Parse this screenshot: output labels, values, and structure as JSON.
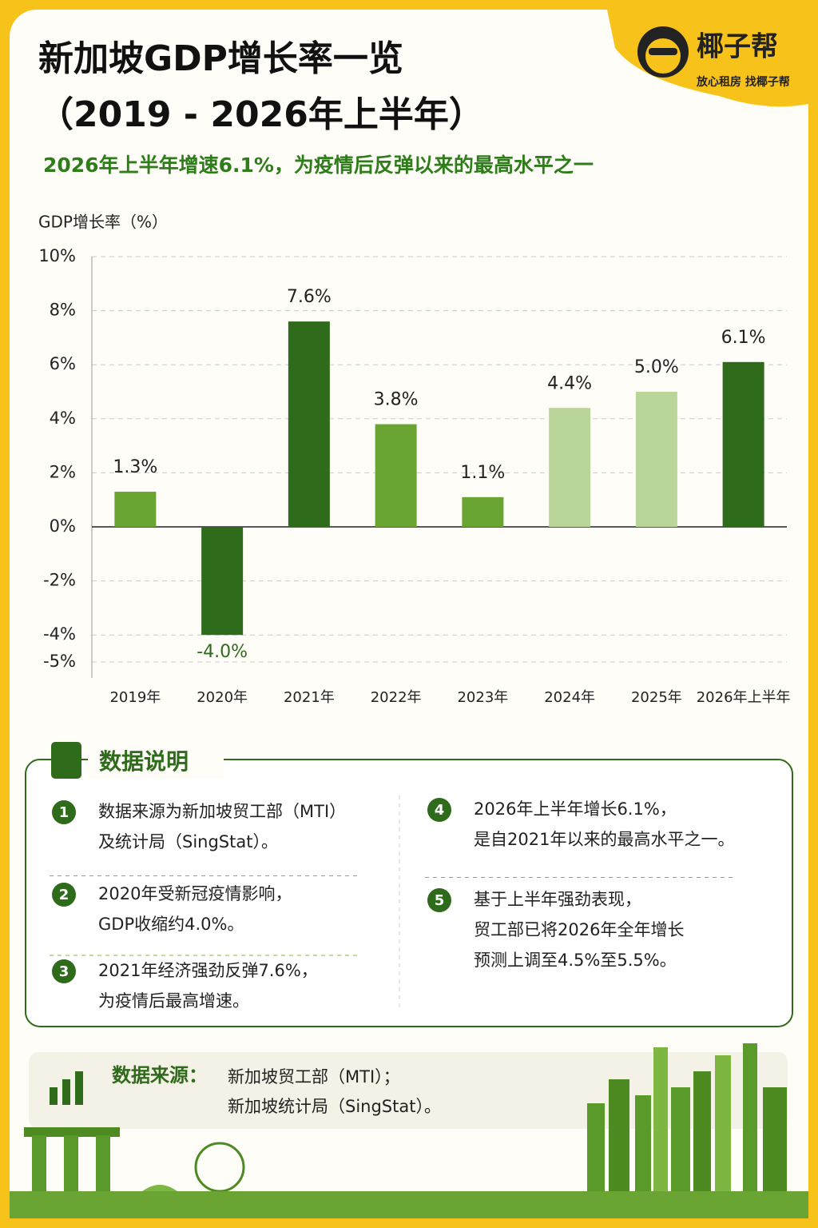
{
  "header": {
    "title_lines": [
      "新加坡GDP增长率一览",
      "（2019 - 2026年上半年）"
    ],
    "subtitle": "2026年上半年增速6.1%，为疫情后反弹以来的最高水平之一"
  },
  "brand": {
    "name": "椰子帮",
    "tagline": "放心租房  找椰子帮"
  },
  "chart_data": {
    "type": "bar",
    "y_label": "GDP增长率（%）",
    "categories": [
      "2019年",
      "2020年",
      "2021年",
      "2022年",
      "2023年",
      "2024年",
      "2025年",
      "2026年上半年"
    ],
    "values": [
      1.3,
      -4.0,
      7.6,
      3.8,
      1.1,
      4.4,
      5.0,
      6.1
    ],
    "value_labels": [
      "1.3%",
      "-4.0%",
      "7.6%",
      "3.8%",
      "1.1%",
      "4.4%",
      "5.0%",
      "6.1%"
    ],
    "colors": [
      "#6aa533",
      "#2e6b1a",
      "#2e6b1a",
      "#6aa533",
      "#6aa533",
      "#b9d59a",
      "#b9d59a",
      "#2e6b1a"
    ],
    "ylim": [
      -5,
      10
    ],
    "yticks": [
      {
        "value": -5,
        "label": "-5%"
      },
      {
        "value": -4,
        "label": "-4%"
      },
      {
        "value": -2,
        "label": "-2%"
      },
      {
        "value": 0,
        "label": "0%"
      },
      {
        "value": 2,
        "label": "2%"
      },
      {
        "value": 4,
        "label": "4%"
      },
      {
        "value": 6,
        "label": "6%"
      },
      {
        "value": 8,
        "label": "8%"
      },
      {
        "value": 10,
        "label": "10%"
      }
    ],
    "grid": true
  },
  "notes": {
    "heading": "数据说明",
    "items": [
      {
        "number": "1",
        "lines": [
          "数据来源为新加坡贸工部（MTI）",
          "及统计局（SingStat）。"
        ]
      },
      {
        "number": "2",
        "lines": [
          "2020年受新冠疫情影响，",
          "GDP收缩约4.0%。"
        ]
      },
      {
        "number": "3",
        "lines": [
          "2021年经济强劲反弹7.6%，",
          "为疫情后最高增速。"
        ]
      },
      {
        "number": "4",
        "lines": [
          "2026年上半年增长6.1%，",
          "是自2021年以来的最高水平之一。"
        ]
      },
      {
        "number": "5",
        "lines": [
          "基于上半年强劲表现，",
          "贸工部已将2026年全年增长",
          "预测上调至4.5%至5.5%。"
        ]
      }
    ]
  },
  "source": {
    "label": "数据来源：",
    "lines": [
      "新加坡贸工部（MTI）；",
      "新加坡统计局（SingStat）。"
    ]
  }
}
